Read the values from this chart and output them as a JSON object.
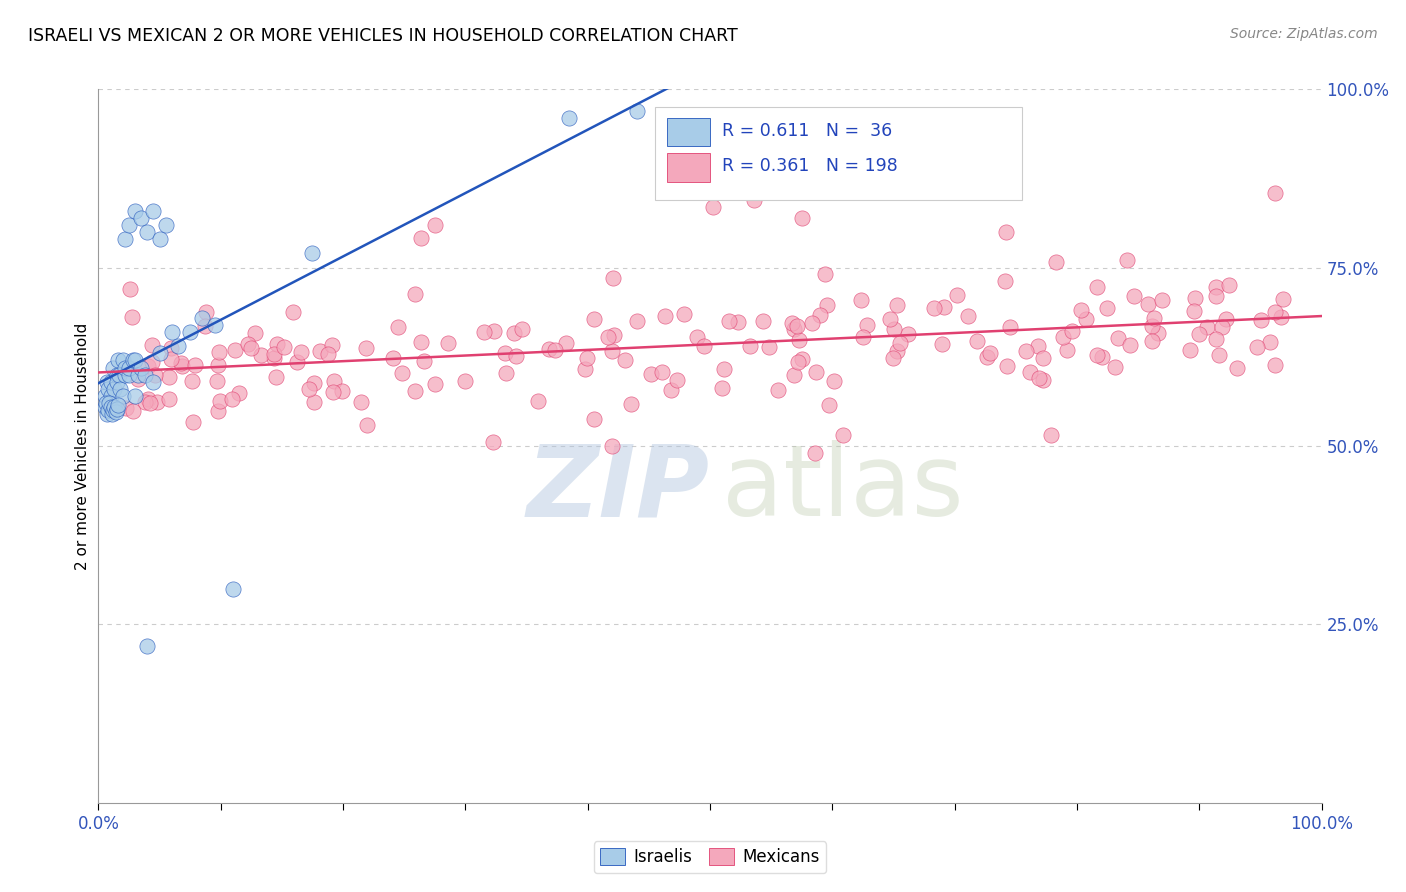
{
  "title": "ISRAELI VS MEXICAN 2 OR MORE VEHICLES IN HOUSEHOLD CORRELATION CHART",
  "source": "Source: ZipAtlas.com",
  "ylabel": "2 or more Vehicles in Household",
  "israeli_color": "#A8CCE8",
  "mexican_color": "#F4A8BC",
  "trend_israeli_color": "#2255BB",
  "trend_mexican_color": "#E04070",
  "background_color": "#ffffff",
  "grid_color": "#cccccc",
  "axis_label_color": "#3355BB",
  "legend_text_color": "#2244BB",
  "right_yticks": [
    0.0,
    0.25,
    0.5,
    0.75,
    1.0
  ],
  "right_yticklabels": [
    "",
    "25.0%",
    "50.0%",
    "75.0%",
    "100.0%"
  ],
  "watermark_zip_color": "#b8c8e0",
  "watermark_atlas_color": "#c0cca8"
}
